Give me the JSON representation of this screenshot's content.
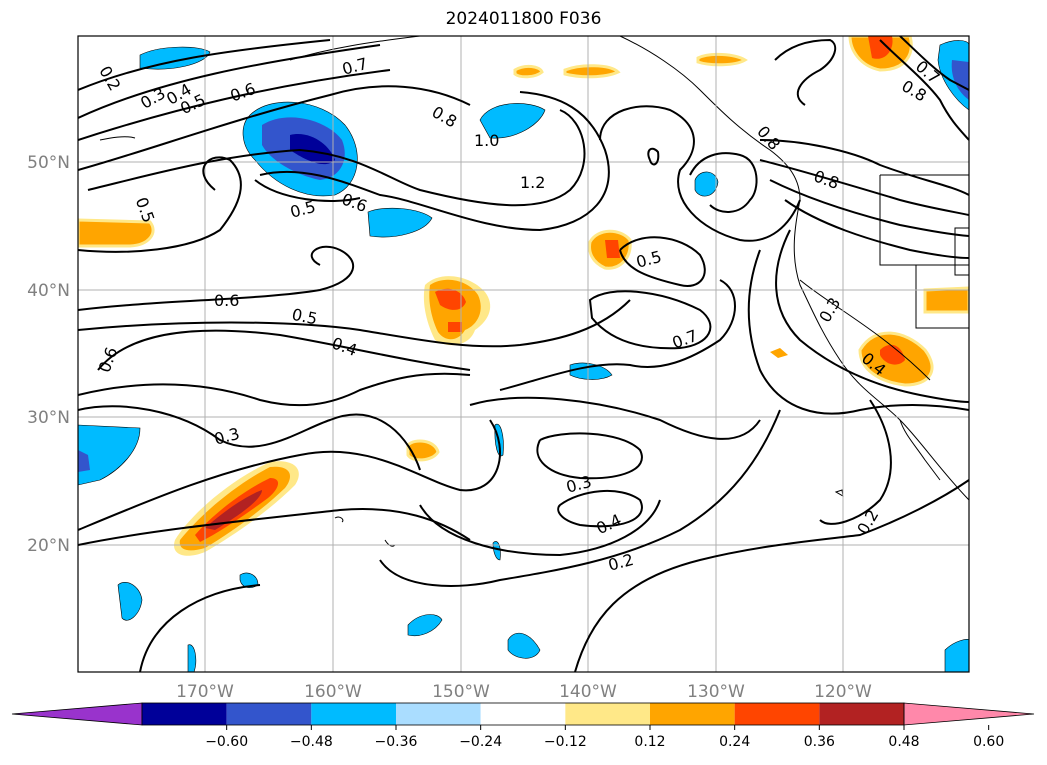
{
  "title": "2024011800 F036",
  "map": {
    "lat_labels": [
      "50°N",
      "40°N",
      "30°N",
      "20°N"
    ],
    "lon_labels": [
      "170°W",
      "160°W",
      "150°W",
      "140°W",
      "130°W",
      "120°W"
    ],
    "contour_labels": [
      "0.2",
      "0.3",
      "0.4",
      "0.5",
      "0.6",
      "0.7",
      "0.8",
      "1.0",
      "1.2",
      "0.8",
      "0.5",
      "0.6",
      "0.5",
      "0.5",
      "0.6",
      "0.5",
      "0.4",
      "0.3",
      "0.3",
      "0.4",
      "0.2",
      "0.7",
      "0.3",
      "0.4",
      "0.2",
      "0.6",
      "0.8",
      "0.7",
      "0.8"
    ]
  },
  "colorbar": {
    "colors": [
      "#9933cc",
      "#000099",
      "#3355cc",
      "#00bbff",
      "#aaddff",
      "#ffffff",
      "#ffe888",
      "#ffa500",
      "#ff4500",
      "#b22222",
      "#ff88aa"
    ],
    "ticks": [
      "−0.60",
      "−0.48",
      "−0.36",
      "−0.24",
      "−0.12",
      "0.12",
      "0.24",
      "0.36",
      "0.48",
      "0.60"
    ]
  }
}
